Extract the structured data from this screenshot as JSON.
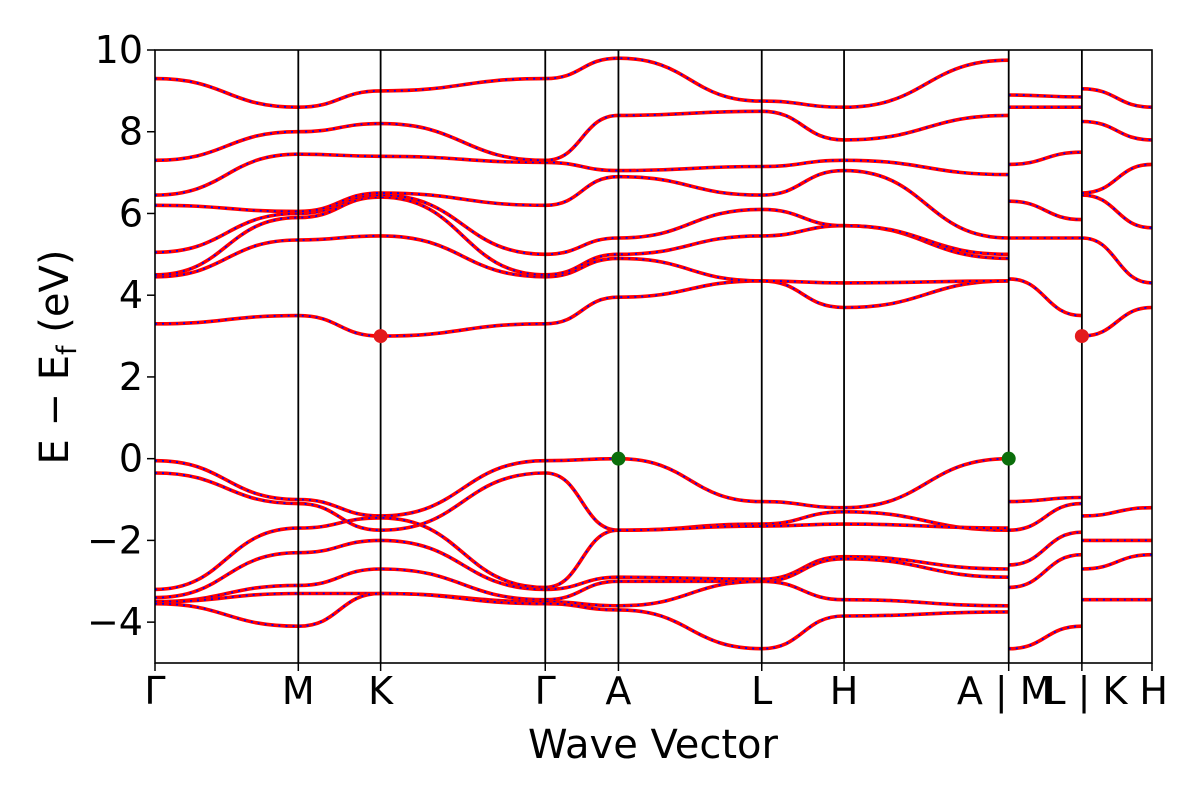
{
  "chart_data": {
    "type": "line",
    "xlabel": "Wave Vector",
    "ylabel": "E − E",
    "ylabel_sub": "f",
    "ylabel_unit": " (eV)",
    "ylim": [
      -5,
      10
    ],
    "yticks": [
      -4,
      -2,
      0,
      2,
      4,
      6,
      8,
      10
    ],
    "ytick_labels": [
      "−4",
      "−2",
      "0",
      "2",
      "4",
      "6",
      "8",
      "10"
    ],
    "xlim": [
      0,
      6.54
    ],
    "kpoints": [
      {
        "x": 0.0,
        "label": "Γ"
      },
      {
        "x": 0.94,
        "label": "M"
      },
      {
        "x": 1.48,
        "label": "K"
      },
      {
        "x": 2.56,
        "label": "Γ"
      },
      {
        "x": 3.04,
        "label": "A"
      },
      {
        "x": 3.98,
        "label": "L"
      },
      {
        "x": 4.52,
        "label": "H"
      },
      {
        "x": 5.6,
        "label": "A | M"
      },
      {
        "x": 6.08,
        "label": "L | K"
      },
      {
        "x": 6.54,
        "label": "H"
      }
    ],
    "grid": false,
    "series_style": [
      {
        "color": "#ff0000",
        "dash": "solid"
      },
      {
        "color": "#0000ff",
        "dash": "dotted"
      }
    ],
    "bands": [
      {
        "x": [
          0,
          0.94,
          1.48,
          2.56,
          3.04,
          3.98,
          4.52,
          5.6
        ],
        "y": [
          -0.05,
          -1.0,
          -1.4,
          -0.05,
          0.0,
          -1.05,
          -1.2,
          0.0
        ]
      },
      {
        "x": [
          0,
          0.94,
          1.48,
          2.56,
          3.04,
          3.98,
          4.52,
          5.6
        ],
        "y": [
          -0.35,
          -1.1,
          -1.75,
          -0.35,
          -1.75,
          -1.6,
          -1.3,
          -1.75
        ]
      },
      {
        "x": [
          0,
          0.94,
          1.48,
          2.56,
          3.04,
          3.98,
          4.52,
          5.6
        ],
        "y": [
          -3.2,
          -1.7,
          -1.45,
          -3.15,
          -1.75,
          -1.65,
          -1.6,
          -1.7
        ]
      },
      {
        "x": [
          0,
          0.94,
          1.48,
          2.56,
          3.04,
          3.98,
          4.52,
          5.6
        ],
        "y": [
          -3.4,
          -2.3,
          -2.0,
          -3.2,
          -2.9,
          -2.95,
          -2.4,
          -2.7
        ]
      },
      {
        "x": [
          0,
          0.94,
          1.48,
          2.56,
          3.04,
          3.98,
          4.52,
          5.6
        ],
        "y": [
          -3.5,
          -3.1,
          -2.7,
          -3.45,
          -3.0,
          -3.0,
          -2.45,
          -2.9
        ]
      },
      {
        "x": [
          0,
          0.94,
          1.48,
          2.56,
          3.04,
          3.98,
          4.52,
          5.6
        ],
        "y": [
          -3.5,
          -3.3,
          -3.3,
          -3.5,
          -3.6,
          -3.0,
          -3.45,
          -3.6
        ]
      },
      {
        "x": [
          0,
          0.94,
          1.48,
          2.56,
          3.04,
          3.98,
          4.52,
          5.6
        ],
        "y": [
          -3.55,
          -4.1,
          -3.3,
          -3.55,
          -3.7,
          -4.65,
          -3.85,
          -3.75
        ]
      },
      {
        "x": [
          0,
          0.94,
          1.48,
          2.56,
          3.04,
          3.98,
          4.52,
          5.6
        ],
        "y": [
          3.3,
          3.5,
          3.0,
          3.3,
          3.95,
          4.35,
          3.7,
          4.35
        ]
      },
      {
        "x": [
          0,
          0.94,
          1.48,
          2.56,
          3.04,
          3.98,
          4.52,
          5.6
        ],
        "y": [
          4.45,
          5.35,
          5.45,
          4.45,
          4.9,
          4.35,
          4.3,
          4.35
        ]
      },
      {
        "x": [
          0,
          0.94,
          1.48,
          2.56,
          3.04,
          3.98,
          4.52,
          5.6
        ],
        "y": [
          4.5,
          5.9,
          6.4,
          4.5,
          5.0,
          5.45,
          5.7,
          4.9
        ]
      },
      {
        "x": [
          0,
          0.94,
          1.48,
          2.56,
          3.04,
          3.98,
          4.52,
          5.6
        ],
        "y": [
          5.05,
          6.0,
          6.45,
          5.0,
          5.4,
          6.1,
          5.7,
          5.0
        ]
      },
      {
        "x": [
          0,
          0.94,
          1.48,
          2.56,
          3.04,
          3.98,
          4.52,
          5.6
        ],
        "y": [
          6.2,
          6.05,
          6.5,
          6.2,
          6.9,
          6.45,
          7.05,
          5.4
        ]
      },
      {
        "x": [
          0,
          0.94,
          1.48,
          2.56,
          3.04,
          3.98,
          4.52,
          5.6
        ],
        "y": [
          6.45,
          7.45,
          7.4,
          7.25,
          7.05,
          7.15,
          7.3,
          6.95
        ]
      },
      {
        "x": [
          0,
          0.94,
          1.48,
          2.56,
          3.04,
          3.98,
          4.52,
          5.6
        ],
        "y": [
          7.3,
          8.0,
          8.2,
          7.3,
          8.4,
          8.5,
          7.8,
          8.4
        ]
      },
      {
        "x": [
          0,
          0.94,
          1.48,
          2.56,
          3.04,
          3.98,
          4.52,
          5.6
        ],
        "y": [
          9.3,
          8.6,
          9.0,
          9.3,
          9.8,
          8.75,
          8.6,
          9.75
        ]
      },
      {
        "x": [
          5.6,
          6.08
        ],
        "y": [
          -1.05,
          -0.95
        ]
      },
      {
        "x": [
          5.6,
          6.08
        ],
        "y": [
          -1.75,
          -1.1
        ]
      },
      {
        "x": [
          5.6,
          6.08
        ],
        "y": [
          -2.6,
          -1.8
        ]
      },
      {
        "x": [
          5.6,
          6.08
        ],
        "y": [
          -3.15,
          -2.35
        ]
      },
      {
        "x": [
          5.6,
          6.08
        ],
        "y": [
          -4.65,
          -4.1
        ]
      },
      {
        "x": [
          5.6,
          6.08
        ],
        "y": [
          4.4,
          3.5
        ]
      },
      {
        "x": [
          5.6,
          6.08
        ],
        "y": [
          5.4,
          5.4
        ]
      },
      {
        "x": [
          5.6,
          6.08
        ],
        "y": [
          6.3,
          5.85
        ]
      },
      {
        "x": [
          5.6,
          6.08
        ],
        "y": [
          7.2,
          7.5
        ]
      },
      {
        "x": [
          5.6,
          6.08
        ],
        "y": [
          8.6,
          8.6
        ]
      },
      {
        "x": [
          5.6,
          6.08
        ],
        "y": [
          8.9,
          8.85
        ]
      },
      {
        "x": [
          6.08,
          6.54
        ],
        "y": [
          -1.4,
          -1.2
        ]
      },
      {
        "x": [
          6.08,
          6.54
        ],
        "y": [
          -2.0,
          -2.0
        ]
      },
      {
        "x": [
          6.08,
          6.54
        ],
        "y": [
          -2.7,
          -2.35
        ]
      },
      {
        "x": [
          6.08,
          6.54
        ],
        "y": [
          -3.45,
          -3.45
        ]
      },
      {
        "x": [
          6.08,
          6.54
        ],
        "y": [
          3.0,
          3.7
        ]
      },
      {
        "x": [
          6.08,
          6.54
        ],
        "y": [
          5.4,
          4.3
        ]
      },
      {
        "x": [
          6.08,
          6.54
        ],
        "y": [
          6.45,
          5.65
        ]
      },
      {
        "x": [
          6.08,
          6.54
        ],
        "y": [
          6.5,
          7.2
        ]
      },
      {
        "x": [
          6.08,
          6.54
        ],
        "y": [
          8.25,
          7.8
        ]
      },
      {
        "x": [
          6.08,
          6.54
        ],
        "y": [
          9.05,
          8.6
        ]
      }
    ],
    "markers": [
      {
        "x": 1.48,
        "y": 3.0,
        "color": "#e31a1c",
        "role": "CBM"
      },
      {
        "x": 6.08,
        "y": 3.0,
        "color": "#e31a1c",
        "role": "CBM"
      },
      {
        "x": 3.04,
        "y": 0.0,
        "color": "#0b6e0b",
        "role": "VBM"
      },
      {
        "x": 5.6,
        "y": 0.0,
        "color": "#0b6e0b",
        "role": "VBM"
      }
    ]
  }
}
